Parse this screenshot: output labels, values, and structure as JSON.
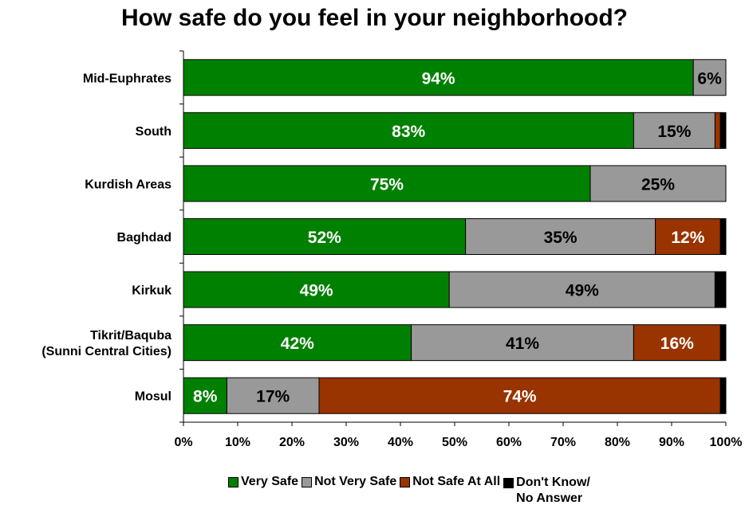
{
  "chart_data": {
    "type": "bar",
    "orientation": "horizontal",
    "stacked": true,
    "title": "How safe do you feel in your neighborhood?",
    "categories": [
      "Mid-Euphrates",
      "South",
      "Kurdish Areas",
      "Baghdad",
      "Kirkuk",
      "Tikrit/Baquba\n(Sunni Central Cities)",
      "Mosul"
    ],
    "series": [
      {
        "name": "Very Safe",
        "color": "#008000",
        "values": [
          94,
          83,
          75,
          52,
          49,
          42,
          8
        ],
        "labels": [
          "94%",
          "83%",
          "75%",
          "52%",
          "49%",
          "42%",
          "8%"
        ],
        "label_color": "#ffffff"
      },
      {
        "name": "Not Very Safe",
        "color": "#999999",
        "values": [
          6,
          15,
          25,
          35,
          49,
          41,
          17
        ],
        "labels": [
          "6%",
          "15%",
          "25%",
          "35%",
          "49%",
          "41%",
          "17%"
        ],
        "label_color": "#000000"
      },
      {
        "name": "Not Safe At All",
        "color": "#993300",
        "values": [
          0,
          1,
          0,
          12,
          0,
          16,
          74
        ],
        "labels": [
          "",
          "",
          "",
          "12%",
          "",
          "16%",
          "74%"
        ],
        "label_color": "#ffffff"
      },
      {
        "name": "Don't Know/\nNo Answer",
        "color": "#000000",
        "values": [
          0,
          1,
          0,
          1,
          2,
          1,
          1
        ],
        "labels": [
          "",
          "",
          "",
          "",
          "",
          "",
          ""
        ],
        "label_color": "#ffffff"
      }
    ],
    "xlim": [
      0,
      100
    ],
    "x_ticks": [
      "0%",
      "10%",
      "20%",
      "30%",
      "40%",
      "50%",
      "60%",
      "70%",
      "80%",
      "90%",
      "100%"
    ],
    "grid": false,
    "legend_position": "bottom"
  }
}
